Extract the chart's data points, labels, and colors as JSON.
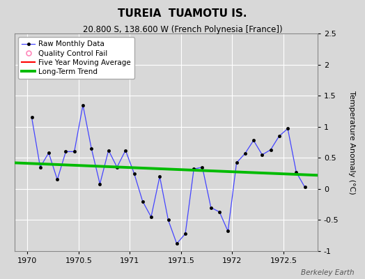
{
  "title": "TUREIA  TUAMOTU IS.",
  "subtitle": "20.800 S, 138.600 W (French Polynesia [France])",
  "ylabel": "Temperature Anomaly (°C)",
  "watermark": "Berkeley Earth",
  "xlim": [
    1969.875,
    1972.833
  ],
  "ylim": [
    -1.0,
    2.5
  ],
  "yticks": [
    -1.0,
    -0.5,
    0.0,
    0.5,
    1.0,
    1.5,
    2.0,
    2.5
  ],
  "xticks": [
    1970.0,
    1970.5,
    1971.0,
    1971.5,
    1972.0,
    1972.5
  ],
  "background_color": "#d8d8d8",
  "plot_bg_color": "#d8d8d8",
  "raw_x": [
    1970.042,
    1970.125,
    1970.208,
    1970.292,
    1970.375,
    1970.458,
    1970.542,
    1970.625,
    1970.708,
    1970.792,
    1970.875,
    1970.958,
    1971.042,
    1971.125,
    1971.208,
    1971.292,
    1971.375,
    1971.458,
    1971.542,
    1971.625,
    1971.708,
    1971.792,
    1971.875,
    1971.958,
    1972.042,
    1972.125,
    1972.208,
    1972.292,
    1972.375,
    1972.458,
    1972.542,
    1972.625,
    1972.708
  ],
  "raw_y": [
    1.15,
    0.35,
    0.58,
    0.15,
    0.6,
    0.6,
    1.35,
    0.65,
    0.08,
    0.62,
    0.35,
    0.62,
    0.25,
    -0.2,
    -0.45,
    0.2,
    -0.5,
    -0.88,
    -0.72,
    0.32,
    0.35,
    -0.3,
    -0.37,
    -0.68,
    0.42,
    0.57,
    0.78,
    0.55,
    0.63,
    0.85,
    0.97,
    0.27,
    0.03
  ],
  "trend_x": [
    1969.875,
    1972.833
  ],
  "trend_y": [
    0.42,
    0.22
  ],
  "line_color": "#4444ff",
  "marker_color": "#000000",
  "trend_color": "#00bb00",
  "ma_color": "#ff0000",
  "qc_color": "#ff88bb",
  "title_fontsize": 11,
  "subtitle_fontsize": 8.5,
  "legend_fontsize": 7.5,
  "tick_fontsize": 8,
  "ylabel_fontsize": 8
}
